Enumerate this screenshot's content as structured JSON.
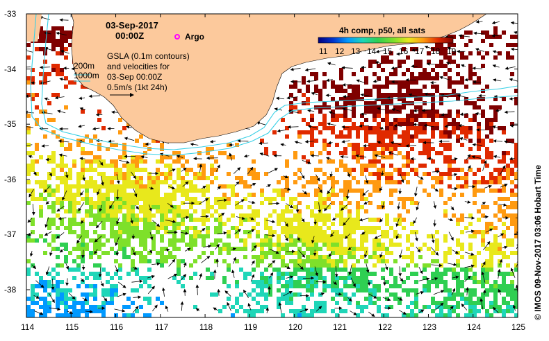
{
  "map": {
    "date_title": "03-Sep-2017",
    "time_title": "00:00Z",
    "argo_label": "Argo",
    "depth_200": "200m",
    "depth_1000": "1000m",
    "gsla_lines": [
      "GSLA (0.1m contours)",
      "and velocities for",
      "03-Sep 00:00Z",
      "0.5m/s (1kt 24h)"
    ],
    "side_credit": "© IMOS 09-Nov-2017 03:06 Hobart Time",
    "x_ticks": [
      "114",
      "115",
      "116",
      "117",
      "118",
      "119",
      "120",
      "121",
      "122",
      "123",
      "124",
      "125"
    ],
    "y_ticks": [
      "-33",
      "-34",
      "-35",
      "-36",
      "-37",
      "-38"
    ],
    "colorbar": {
      "title": "4h comp, p50, all sats",
      "labels": [
        "11",
        "12",
        "13",
        "14",
        "15",
        "16",
        "17",
        "18",
        "19"
      ]
    },
    "colors": {
      "land": "#fcc99c",
      "isobath": "#37d0e6",
      "argo": "#ff00ff",
      "sst_ramp": [
        "#00007f",
        "#0033cc",
        "#0099ff",
        "#1fd6b8",
        "#2fcf52",
        "#7ee02a",
        "#e8e81c",
        "#ff9a10",
        "#e02a00",
        "#7f0000"
      ]
    }
  }
}
